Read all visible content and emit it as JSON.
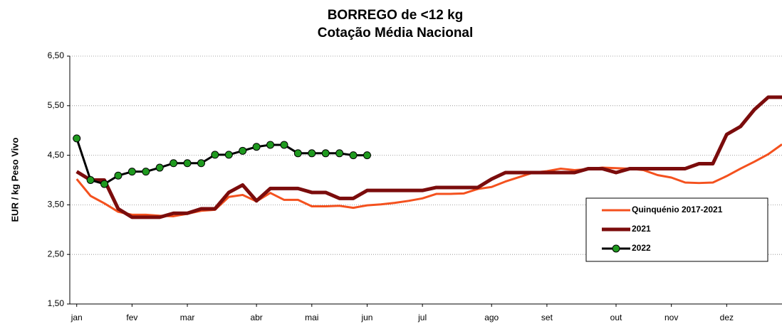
{
  "chart_data": {
    "type": "line",
    "title": "BORREGO de <12 kg",
    "subtitle": "Cotação Média Nacional",
    "y_label": "EUR / kg Peso Vivo",
    "x": [
      1,
      2,
      3,
      4,
      5,
      6,
      7,
      8,
      9,
      10,
      11,
      12,
      13,
      14,
      15,
      16,
      17,
      18,
      19,
      20,
      21,
      22,
      23,
      24,
      25,
      26,
      27,
      28,
      29,
      30,
      31,
      32,
      33,
      34,
      35,
      36,
      37,
      38,
      39,
      40,
      41,
      42,
      43,
      44,
      45,
      46,
      47,
      48,
      49,
      50,
      51,
      52
    ],
    "xlim": [
      0.5,
      52
    ],
    "xticks": [
      {
        "value": 1,
        "label": "jan"
      },
      {
        "value": 5,
        "label": "fev"
      },
      {
        "value": 9,
        "label": "mar"
      },
      {
        "value": 14,
        "label": "abr"
      },
      {
        "value": 18,
        "label": "mai"
      },
      {
        "value": 22,
        "label": "jun"
      },
      {
        "value": 26,
        "label": "jul"
      },
      {
        "value": 31,
        "label": "ago"
      },
      {
        "value": 35,
        "label": "set"
      },
      {
        "value": 40,
        "label": "out"
      },
      {
        "value": 44,
        "label": "nov"
      },
      {
        "value": 48,
        "label": "dez"
      }
    ],
    "ylim": [
      1.5,
      6.5
    ],
    "yticks": [
      {
        "value": 1.5,
        "label": "1,50"
      },
      {
        "value": 2.5,
        "label": "2,50"
      },
      {
        "value": 3.5,
        "label": "3,50"
      },
      {
        "value": 4.5,
        "label": "4,50"
      },
      {
        "value": 5.5,
        "label": "5,50"
      },
      {
        "value": 6.5,
        "label": "6,50"
      }
    ],
    "grid": true,
    "legend": "lower right",
    "series": [
      {
        "name": "Quinquénio 2017-2021",
        "color": "#f4511e",
        "width": 3,
        "markers": false,
        "values": [
          4.02,
          3.68,
          3.53,
          3.36,
          3.3,
          3.3,
          3.28,
          3.27,
          3.32,
          3.38,
          3.4,
          3.66,
          3.7,
          3.57,
          3.74,
          3.6,
          3.6,
          3.47,
          3.47,
          3.48,
          3.44,
          3.49,
          3.51,
          3.54,
          3.58,
          3.63,
          3.72,
          3.72,
          3.73,
          3.82,
          3.86,
          3.97,
          4.06,
          4.15,
          4.18,
          4.23,
          4.2,
          4.22,
          4.25,
          4.24,
          4.23,
          4.2,
          4.1,
          4.05,
          3.95,
          3.94,
          3.95,
          4.08,
          4.23,
          4.37,
          4.52,
          4.72
        ]
      },
      {
        "name": "2021",
        "color": "#7b0c0c",
        "width": 5,
        "markers": false,
        "values": [
          4.17,
          4.0,
          4.0,
          3.42,
          3.25,
          3.25,
          3.25,
          3.33,
          3.33,
          3.42,
          3.42,
          3.75,
          3.9,
          3.58,
          3.83,
          3.83,
          3.83,
          3.75,
          3.75,
          3.63,
          3.63,
          3.79,
          3.79,
          3.79,
          3.79,
          3.79,
          3.85,
          3.85,
          3.85,
          3.85,
          4.02,
          4.15,
          4.15,
          4.15,
          4.15,
          4.15,
          4.15,
          4.23,
          4.23,
          4.15,
          4.23,
          4.23,
          4.23,
          4.23,
          4.23,
          4.33,
          4.33,
          4.92,
          5.08,
          5.42,
          5.67,
          5.67
        ]
      },
      {
        "name": "2022",
        "color": "#000000",
        "marker_color": "#1f9a1f",
        "width": 3,
        "markers": true,
        "values": [
          4.84,
          4.0,
          3.92,
          4.09,
          4.17,
          4.17,
          4.25,
          4.34,
          4.34,
          4.34,
          4.51,
          4.51,
          4.59,
          4.67,
          4.71,
          4.71,
          4.54,
          4.54,
          4.54,
          4.54,
          4.5,
          4.5,
          null,
          null,
          null,
          null,
          null,
          null,
          null,
          null,
          null,
          null,
          null,
          null,
          null,
          null,
          null,
          null,
          null,
          null,
          null,
          null,
          null,
          null,
          null,
          null,
          null,
          null,
          null,
          null,
          null,
          null
        ]
      }
    ]
  }
}
